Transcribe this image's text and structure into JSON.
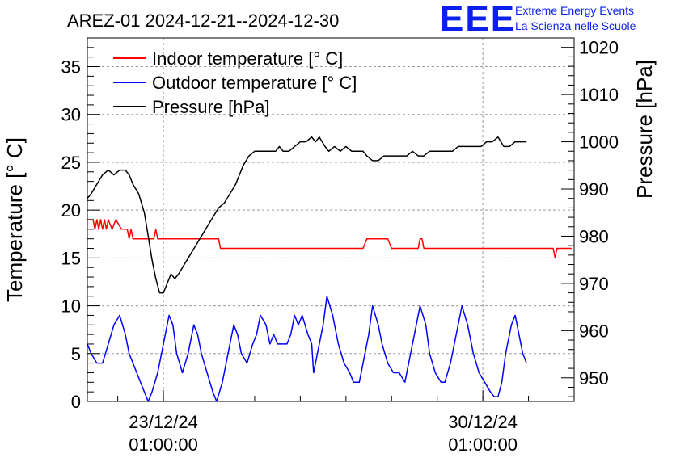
{
  "chart_data": {
    "type": "line",
    "title": "AREZ-01 2024-12-21--2024-12-30",
    "ylabel_left": "Temperature [° C]",
    "ylabel_right": "Pressure [hPa]",
    "ylim_left": [
      0,
      38
    ],
    "ylim_right": [
      945,
      1022
    ],
    "yticks_left": [
      0,
      5,
      10,
      15,
      20,
      25,
      30,
      35
    ],
    "yticks_right": [
      950,
      960,
      970,
      980,
      990,
      1000,
      1010,
      1020
    ],
    "xlim": [
      "2024-12-21T09:00:00",
      "2025-01-01T01:00:00"
    ],
    "xticks": [
      {
        "x": "2024-12-23T01:00:00",
        "label_date": "23/12/24",
        "label_time": "01:00:00"
      },
      {
        "x": "2024-12-30T01:00:00",
        "label_date": "30/12/24",
        "label_time": "01:00:00"
      }
    ],
    "grid": true,
    "legend_position": "top-left",
    "logo": {
      "text": "EEE",
      "line1": "Extreme Energy Events",
      "line2": "La Scienza nelle Scuole"
    },
    "series": [
      {
        "name": "Indoor temperature [° C]",
        "axis": "left",
        "color": "#ff0000",
        "points": [
          [
            "2024-12-21T09:00:00",
            19.0
          ],
          [
            "2024-12-21T12:00:00",
            19.0
          ],
          [
            "2024-12-21T13:00:00",
            18.0
          ],
          [
            "2024-12-21T14:00:00",
            19.0
          ],
          [
            "2024-12-21T15:00:00",
            18.0
          ],
          [
            "2024-12-21T16:00:00",
            19.0
          ],
          [
            "2024-12-21T17:00:00",
            18.0
          ],
          [
            "2024-12-21T18:00:00",
            19.0
          ],
          [
            "2024-12-21T19:00:00",
            18.0
          ],
          [
            "2024-12-21T20:00:00",
            19.0
          ],
          [
            "2024-12-21T22:00:00",
            18.0
          ],
          [
            "2024-12-22T00:00:00",
            19.0
          ],
          [
            "2024-12-22T03:00:00",
            18.0
          ],
          [
            "2024-12-22T06:00:00",
            18.0
          ],
          [
            "2024-12-22T07:00:00",
            17.0
          ],
          [
            "2024-12-22T08:00:00",
            18.0
          ],
          [
            "2024-12-22T09:00:00",
            17.0
          ],
          [
            "2024-12-22T17:00:00",
            17.0
          ],
          [
            "2024-12-22T20:00:00",
            17.0
          ],
          [
            "2024-12-22T21:00:00",
            18.0
          ],
          [
            "2024-12-22T22:00:00",
            17.0
          ],
          [
            "2024-12-24T06:00:00",
            17.0
          ],
          [
            "2024-12-24T07:00:00",
            16.0
          ],
          [
            "2024-12-27T10:00:00",
            16.0
          ],
          [
            "2024-12-27T12:00:00",
            17.0
          ],
          [
            "2024-12-27T23:00:00",
            17.0
          ],
          [
            "2024-12-28T01:00:00",
            16.0
          ],
          [
            "2024-12-28T15:00:00",
            16.0
          ],
          [
            "2024-12-28T16:00:00",
            17.0
          ],
          [
            "2024-12-28T17:00:00",
            17.0
          ],
          [
            "2024-12-28T18:00:00",
            16.0
          ],
          [
            "2024-12-31T14:00:00",
            16.0
          ],
          [
            "2024-12-31T15:00:00",
            15.0
          ],
          [
            "2024-12-31T16:00:00",
            16.0
          ],
          [
            "2025-01-01T00:00:00",
            16.0
          ]
        ]
      },
      {
        "name": "Outdoor temperature [° C]",
        "axis": "left",
        "color": "#0000ff",
        "points": [
          [
            "2024-12-21T09:00:00",
            6.0
          ],
          [
            "2024-12-21T11:00:00",
            5.0
          ],
          [
            "2024-12-21T14:00:00",
            4.0
          ],
          [
            "2024-12-21T17:00:00",
            4.0
          ],
          [
            "2024-12-21T20:00:00",
            6.0
          ],
          [
            "2024-12-21T23:00:00",
            8.0
          ],
          [
            "2024-12-22T02:00:00",
            9.0
          ],
          [
            "2024-12-22T05:00:00",
            7.0
          ],
          [
            "2024-12-22T07:00:00",
            5.0
          ],
          [
            "2024-12-22T11:00:00",
            3.0
          ],
          [
            "2024-12-22T15:00:00",
            1.0
          ],
          [
            "2024-12-22T17:00:00",
            0.0
          ],
          [
            "2024-12-22T19:00:00",
            1.0
          ],
          [
            "2024-12-22T22:00:00",
            3.0
          ],
          [
            "2024-12-23T01:00:00",
            6.0
          ],
          [
            "2024-12-23T04:00:00",
            9.0
          ],
          [
            "2024-12-23T06:00:00",
            8.0
          ],
          [
            "2024-12-23T08:00:00",
            5.0
          ],
          [
            "2024-12-23T11:00:00",
            3.0
          ],
          [
            "2024-12-23T14:00:00",
            5.0
          ],
          [
            "2024-12-23T17:00:00",
            8.0
          ],
          [
            "2024-12-23T19:00:00",
            7.0
          ],
          [
            "2024-12-23T21:00:00",
            5.0
          ],
          [
            "2024-12-24T00:00:00",
            3.0
          ],
          [
            "2024-12-24T03:00:00",
            1.0
          ],
          [
            "2024-12-24T05:00:00",
            0.0
          ],
          [
            "2024-12-24T08:00:00",
            2.0
          ],
          [
            "2024-12-24T11:00:00",
            5.0
          ],
          [
            "2024-12-24T14:00:00",
            8.0
          ],
          [
            "2024-12-24T16:00:00",
            7.0
          ],
          [
            "2024-12-24T18:00:00",
            5.0
          ],
          [
            "2024-12-24T21:00:00",
            4.0
          ],
          [
            "2024-12-25T00:00:00",
            6.0
          ],
          [
            "2024-12-25T02:00:00",
            7.0
          ],
          [
            "2024-12-25T04:00:00",
            9.0
          ],
          [
            "2024-12-25T07:00:00",
            8.0
          ],
          [
            "2024-12-25T09:00:00",
            6.0
          ],
          [
            "2024-12-25T11:00:00",
            7.0
          ],
          [
            "2024-12-25T13:00:00",
            6.0
          ],
          [
            "2024-12-25T16:00:00",
            6.0
          ],
          [
            "2024-12-25T18:00:00",
            6.0
          ],
          [
            "2024-12-25T20:00:00",
            7.0
          ],
          [
            "2024-12-25T22:00:00",
            9.0
          ],
          [
            "2024-12-26T00:00:00",
            8.0
          ],
          [
            "2024-12-26T02:00:00",
            9.0
          ],
          [
            "2024-12-26T05:00:00",
            7.0
          ],
          [
            "2024-12-26T07:00:00",
            6.0
          ],
          [
            "2024-12-26T08:00:00",
            3.0
          ],
          [
            "2024-12-26T10:00:00",
            5.0
          ],
          [
            "2024-12-26T13:00:00",
            8.0
          ],
          [
            "2024-12-26T15:00:00",
            11.0
          ],
          [
            "2024-12-26T18:00:00",
            9.0
          ],
          [
            "2024-12-26T21:00:00",
            6.0
          ],
          [
            "2024-12-27T00:00:00",
            4.0
          ],
          [
            "2024-12-27T03:00:00",
            3.0
          ],
          [
            "2024-12-27T05:00:00",
            2.0
          ],
          [
            "2024-12-27T08:00:00",
            2.0
          ],
          [
            "2024-12-27T10:00:00",
            4.0
          ],
          [
            "2024-12-27T13:00:00",
            7.0
          ],
          [
            "2024-12-27T15:00:00",
            10.0
          ],
          [
            "2024-12-27T18:00:00",
            8.0
          ],
          [
            "2024-12-27T20:00:00",
            6.0
          ],
          [
            "2024-12-27T23:00:00",
            4.0
          ],
          [
            "2024-12-28T02:00:00",
            3.0
          ],
          [
            "2024-12-28T05:00:00",
            3.0
          ],
          [
            "2024-12-28T08:00:00",
            2.0
          ],
          [
            "2024-12-28T10:00:00",
            4.0
          ],
          [
            "2024-12-28T13:00:00",
            7.0
          ],
          [
            "2024-12-28T16:00:00",
            10.0
          ],
          [
            "2024-12-28T19:00:00",
            8.0
          ],
          [
            "2024-12-28T21:00:00",
            5.0
          ],
          [
            "2024-12-29T00:00:00",
            3.0
          ],
          [
            "2024-12-29T03:00:00",
            2.0
          ],
          [
            "2024-12-29T05:00:00",
            2.0
          ],
          [
            "2024-12-29T08:00:00",
            4.0
          ],
          [
            "2024-12-29T11:00:00",
            7.0
          ],
          [
            "2024-12-29T14:00:00",
            10.0
          ],
          [
            "2024-12-29T17:00:00",
            8.0
          ],
          [
            "2024-12-29T20:00:00",
            5.0
          ],
          [
            "2024-12-29T23:00:00",
            3.0
          ],
          [
            "2024-12-30T02:00:00",
            2.0
          ],
          [
            "2024-12-30T05:00:00",
            1.0
          ],
          [
            "2024-12-30T07:00:00",
            0.5
          ],
          [
            "2024-12-30T09:00:00",
            0.5
          ],
          [
            "2024-12-30T11:00:00",
            2.0
          ],
          [
            "2024-12-30T13:00:00",
            5.0
          ],
          [
            "2024-12-30T16:00:00",
            8.0
          ],
          [
            "2024-12-30T18:00:00",
            9.0
          ],
          [
            "2024-12-30T20:00:00",
            7.0
          ],
          [
            "2024-12-30T22:00:00",
            5.0
          ],
          [
            "2024-12-31T00:00:00",
            4.0
          ]
        ]
      },
      {
        "name": "Pressure [hPa]",
        "axis": "right",
        "color": "#000000",
        "points": [
          [
            "2024-12-21T09:00:00",
            988.0
          ],
          [
            "2024-12-21T11:00:00",
            989.0
          ],
          [
            "2024-12-21T14:00:00",
            991.0
          ],
          [
            "2024-12-21T17:00:00",
            993.0
          ],
          [
            "2024-12-21T20:00:00",
            994.0
          ],
          [
            "2024-12-21T23:00:00",
            993.0
          ],
          [
            "2024-12-22T02:00:00",
            994.0
          ],
          [
            "2024-12-22T05:00:00",
            994.0
          ],
          [
            "2024-12-22T07:00:00",
            993.0
          ],
          [
            "2024-12-22T09:00:00",
            991.0
          ],
          [
            "2024-12-22T12:00:00",
            989.0
          ],
          [
            "2024-12-22T15:00:00",
            985.0
          ],
          [
            "2024-12-22T17:00:00",
            980.0
          ],
          [
            "2024-12-22T19:00:00",
            975.0
          ],
          [
            "2024-12-22T21:00:00",
            971.0
          ],
          [
            "2024-12-22T23:00:00",
            968.0
          ],
          [
            "2024-12-23T01:00:00",
            968.0
          ],
          [
            "2024-12-23T03:00:00",
            970.0
          ],
          [
            "2024-12-23T05:00:00",
            972.0
          ],
          [
            "2024-12-23T07:00:00",
            971.0
          ],
          [
            "2024-12-23T09:00:00",
            972.0
          ],
          [
            "2024-12-23T12:00:00",
            974.0
          ],
          [
            "2024-12-23T15:00:00",
            976.0
          ],
          [
            "2024-12-23T18:00:00",
            978.0
          ],
          [
            "2024-12-23T21:00:00",
            980.0
          ],
          [
            "2024-12-24T00:00:00",
            982.0
          ],
          [
            "2024-12-24T03:00:00",
            984.0
          ],
          [
            "2024-12-24T06:00:00",
            986.0
          ],
          [
            "2024-12-24T09:00:00",
            987.0
          ],
          [
            "2024-12-24T12:00:00",
            989.0
          ],
          [
            "2024-12-24T15:00:00",
            991.0
          ],
          [
            "2024-12-24T17:00:00",
            993.0
          ],
          [
            "2024-12-24T19:00:00",
            995.0
          ],
          [
            "2024-12-24T22:00:00",
            997.0
          ],
          [
            "2024-12-25T01:00:00",
            998.0
          ],
          [
            "2024-12-25T05:00:00",
            998.0
          ],
          [
            "2024-12-25T09:00:00",
            998.0
          ],
          [
            "2024-12-25T12:00:00",
            998.0
          ],
          [
            "2024-12-25T14:00:00",
            999.0
          ],
          [
            "2024-12-25T16:00:00",
            998.0
          ],
          [
            "2024-12-25T19:00:00",
            998.0
          ],
          [
            "2024-12-25T22:00:00",
            999.0
          ],
          [
            "2024-12-26T01:00:00",
            1000.0
          ],
          [
            "2024-12-26T04:00:00",
            1000.0
          ],
          [
            "2024-12-26T07:00:00",
            1001.0
          ],
          [
            "2024-12-26T09:00:00",
            1000.0
          ],
          [
            "2024-12-26T11:00:00",
            1001.0
          ],
          [
            "2024-12-26T14:00:00",
            999.0
          ],
          [
            "2024-12-26T16:00:00",
            998.0
          ],
          [
            "2024-12-26T19:00:00",
            999.0
          ],
          [
            "2024-12-26T22:00:00",
            998.0
          ],
          [
            "2024-12-27T01:00:00",
            999.0
          ],
          [
            "2024-12-27T04:00:00",
            998.0
          ],
          [
            "2024-12-27T07:00:00",
            998.0
          ],
          [
            "2024-12-27T10:00:00",
            998.0
          ],
          [
            "2024-12-27T12:00:00",
            997.0
          ],
          [
            "2024-12-27T15:00:00",
            996.0
          ],
          [
            "2024-12-27T18:00:00",
            996.0
          ],
          [
            "2024-12-27T21:00:00",
            997.0
          ],
          [
            "2024-12-28T01:00:00",
            997.0
          ],
          [
            "2024-12-28T05:00:00",
            997.0
          ],
          [
            "2024-12-28T09:00:00",
            997.0
          ],
          [
            "2024-12-28T12:00:00",
            998.0
          ],
          [
            "2024-12-28T15:00:00",
            997.0
          ],
          [
            "2024-12-28T18:00:00",
            997.0
          ],
          [
            "2024-12-28T21:00:00",
            998.0
          ],
          [
            "2024-12-29T00:00:00",
            998.0
          ],
          [
            "2024-12-29T03:00:00",
            998.0
          ],
          [
            "2024-12-29T06:00:00",
            998.0
          ],
          [
            "2024-12-29T09:00:00",
            998.0
          ],
          [
            "2024-12-29T12:00:00",
            999.0
          ],
          [
            "2024-12-29T15:00:00",
            999.0
          ],
          [
            "2024-12-29T18:00:00",
            999.0
          ],
          [
            "2024-12-29T21:00:00",
            999.0
          ],
          [
            "2024-12-30T00:00:00",
            999.0
          ],
          [
            "2024-12-30T03:00:00",
            1000.0
          ],
          [
            "2024-12-30T06:00:00",
            1000.0
          ],
          [
            "2024-12-30T09:00:00",
            1001.0
          ],
          [
            "2024-12-30T12:00:00",
            999.0
          ],
          [
            "2024-12-30T15:00:00",
            999.0
          ],
          [
            "2024-12-30T18:00:00",
            1000.0
          ],
          [
            "2024-12-30T21:00:00",
            1000.0
          ],
          [
            "2024-12-31T00:00:00",
            1000.0
          ]
        ]
      }
    ]
  }
}
